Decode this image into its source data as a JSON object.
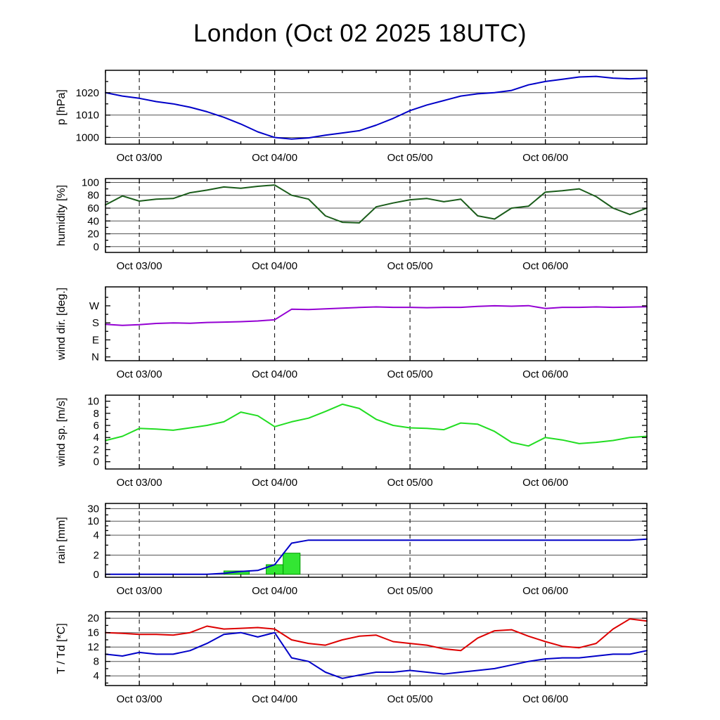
{
  "title": "London (Oct 02 2025 18UTC)",
  "chart_data": {
    "type": "line",
    "title": "London (Oct 02 2025 18UTC)",
    "x": {
      "range": [
        0,
        96
      ],
      "hours": [
        0,
        3,
        6,
        9,
        12,
        15,
        18,
        21,
        24,
        27,
        30,
        33,
        36,
        39,
        42,
        45,
        48,
        51,
        54,
        57,
        60,
        63,
        66,
        69,
        72,
        75,
        78,
        81,
        84,
        87,
        90,
        93,
        96
      ],
      "minor_every": 6,
      "ticks": [
        {
          "t": 6,
          "label": "Oct 03/00"
        },
        {
          "t": 30,
          "label": "Oct 04/00"
        },
        {
          "t": 54,
          "label": "Oct 05/00"
        },
        {
          "t": 78,
          "label": "Oct 06/00"
        }
      ]
    },
    "panels": [
      {
        "id": "pressure",
        "ylabel": "p [hPa]",
        "grid": true,
        "ymap": [
          [
            997,
            0
          ],
          [
            1030,
            1
          ]
        ],
        "yticks": [
          {
            "v": 1000,
            "label": "1000"
          },
          {
            "v": 1010,
            "label": "1010"
          },
          {
            "v": 1020,
            "label": "1020"
          }
        ],
        "yminor": [
          1005,
          1015,
          1025
        ],
        "series": [
          {
            "name": "pressure",
            "color": "#0000c8",
            "width": 2,
            "values": [
              1020,
              1018.5,
              1017.5,
              1016,
              1015,
              1013.5,
              1011.5,
              1009,
              1006,
              1002.5,
              1000,
              999.3,
              999.8,
              1001,
              1002,
              1003,
              1005.5,
              1008.5,
              1012,
              1014.5,
              1016.5,
              1018.5,
              1019.5,
              1020,
              1021,
              1023.5,
              1025,
              1026,
              1027,
              1027.3,
              1026.5,
              1026.2,
              1026.5
            ]
          }
        ]
      },
      {
        "id": "humidity",
        "ylabel": "humidity [%]",
        "grid": true,
        "ymap": [
          [
            -9,
            0
          ],
          [
            106,
            1
          ]
        ],
        "yticks": [
          {
            "v": 0,
            "label": "0"
          },
          {
            "v": 20,
            "label": "20"
          },
          {
            "v": 40,
            "label": "40"
          },
          {
            "v": 60,
            "label": "60"
          },
          {
            "v": 80,
            "label": "80"
          },
          {
            "v": 100,
            "label": "100"
          }
        ],
        "yminor": [
          10,
          30,
          50,
          70,
          90
        ],
        "series": [
          {
            "name": "humidity",
            "color": "#1a5c1a",
            "width": 2,
            "values": [
              65,
              79,
              71,
              74,
              75,
              84,
              88,
              93,
              91,
              94,
              96,
              80,
              74,
              48,
              38,
              37,
              62,
              68,
              73,
              75,
              70,
              74,
              48,
              43,
              60,
              63,
              85,
              87,
              90,
              78,
              60,
              50,
              60
            ]
          }
        ]
      },
      {
        "id": "wind-direction",
        "ylabel": "wind dir. [deg.]",
        "grid": false,
        "ymap": [
          [
            -20,
            0
          ],
          [
            370,
            1
          ]
        ],
        "yticks": [
          {
            "v": 0,
            "label": "N"
          },
          {
            "v": 90,
            "label": "E"
          },
          {
            "v": 180,
            "label": "S"
          },
          {
            "v": 270,
            "label": "W"
          }
        ],
        "yminor": [
          45,
          135,
          225,
          315
        ],
        "series": [
          {
            "name": "wind-direction",
            "color": "#9400d3",
            "width": 2,
            "values": [
              172,
              167,
              170,
              177,
              180,
              178,
              182,
              184,
              186,
              190,
              196,
              252,
              250,
              254,
              258,
              261,
              264,
              262,
              262,
              260,
              262,
              262,
              267,
              270,
              268,
              271,
              256,
              262,
              262,
              264,
              262,
              263,
              265
            ]
          }
        ]
      },
      {
        "id": "wind-speed",
        "ylabel": "wind sp. [m/s]",
        "grid": false,
        "ymap": [
          [
            -1.2,
            0
          ],
          [
            11,
            1
          ]
        ],
        "yticks": [
          {
            "v": 0,
            "label": "0"
          },
          {
            "v": 2,
            "label": "2"
          },
          {
            "v": 4,
            "label": "4"
          },
          {
            "v": 6,
            "label": "6"
          },
          {
            "v": 8,
            "label": "8"
          },
          {
            "v": 10,
            "label": "10"
          }
        ],
        "yminor": [
          1,
          3,
          5,
          7,
          9
        ],
        "series": [
          {
            "name": "wind-speed",
            "color": "#22dd22",
            "width": 2,
            "values": [
              3.5,
              4.2,
              5.5,
              5.4,
              5.2,
              5.6,
              6.0,
              6.6,
              8.2,
              7.6,
              5.8,
              6.6,
              7.2,
              8.3,
              9.5,
              8.8,
              7.0,
              6.0,
              5.6,
              5.5,
              5.3,
              6.4,
              6.2,
              5.0,
              3.2,
              2.6,
              4.0,
              3.6,
              3.0,
              3.2,
              3.5,
              4.0,
              4.2
            ]
          }
        ]
      },
      {
        "id": "rain",
        "ylabel": "rain [mm]",
        "grid": true,
        "ymap": [
          [
            0,
            0.04
          ],
          [
            2,
            0.3
          ],
          [
            4,
            0.57
          ],
          [
            10,
            0.76
          ],
          [
            30,
            0.93
          ],
          [
            80,
            1
          ]
        ],
        "yticks": [
          {
            "v": 0,
            "label": "0"
          },
          {
            "v": 2,
            "label": "2"
          },
          {
            "v": 4,
            "label": "4"
          },
          {
            "v": 10,
            "label": "10"
          },
          {
            "v": 30,
            "label": "30"
          }
        ],
        "yminor": [
          1,
          3,
          6,
          8,
          20
        ],
        "bars": {
          "name": "rain-3h",
          "color": "#33e633",
          "edge": "#009900",
          "items": [
            {
              "start": 21,
              "end": 25.5,
              "value": 0.35
            },
            {
              "start": 28.5,
              "end": 31.5,
              "value": 1.0
            },
            {
              "start": 31.5,
              "end": 34.5,
              "value": 2.2
            }
          ]
        },
        "series": [
          {
            "name": "rain-accumulated",
            "color": "#0000c8",
            "width": 2,
            "values": [
              0,
              0,
              0,
              0,
              0,
              0,
              0,
              0.1,
              0.3,
              0.4,
              1.0,
              3.2,
              3.5,
              3.5,
              3.5,
              3.5,
              3.5,
              3.5,
              3.5,
              3.5,
              3.5,
              3.5,
              3.5,
              3.5,
              3.5,
              3.5,
              3.5,
              3.5,
              3.5,
              3.5,
              3.5,
              3.5,
              3.6
            ]
          }
        ]
      },
      {
        "id": "temperature",
        "ylabel": "T / Td [*C]",
        "grid": true,
        "ymap": [
          [
            1.3,
            0
          ],
          [
            21.8,
            1
          ]
        ],
        "yticks": [
          {
            "v": 4,
            "label": "4"
          },
          {
            "v": 8,
            "label": "8"
          },
          {
            "v": 12,
            "label": "12"
          },
          {
            "v": 16,
            "label": "16"
          },
          {
            "v": 20,
            "label": "20"
          }
        ],
        "yminor": [
          2,
          6,
          10,
          14,
          18
        ],
        "series": [
          {
            "name": "temperature",
            "color": "#dd0000",
            "width": 2,
            "values": [
              16,
              15.8,
              15.5,
              15.5,
              15.3,
              16,
              17.8,
              17,
              17.2,
              17.4,
              17,
              14,
              13,
              12.5,
              14,
              15,
              15.3,
              13.5,
              13,
              12.5,
              11.5,
              11,
              14.5,
              16.5,
              16.8,
              15,
              13.5,
              12.2,
              11.8,
              13,
              17,
              19.8,
              19.2
            ]
          },
          {
            "name": "dewpoint",
            "color": "#0000c8",
            "width": 2,
            "values": [
              10,
              9.5,
              10.5,
              10,
              10,
              11,
              13,
              15.5,
              16,
              14.8,
              16,
              9,
              8,
              5,
              3.3,
              4.2,
              5,
              5,
              5.5,
              5,
              4.5,
              5,
              5.5,
              6,
              7,
              8,
              8.7,
              9,
              9,
              9.5,
              10,
              10,
              11
            ]
          }
        ]
      }
    ]
  }
}
